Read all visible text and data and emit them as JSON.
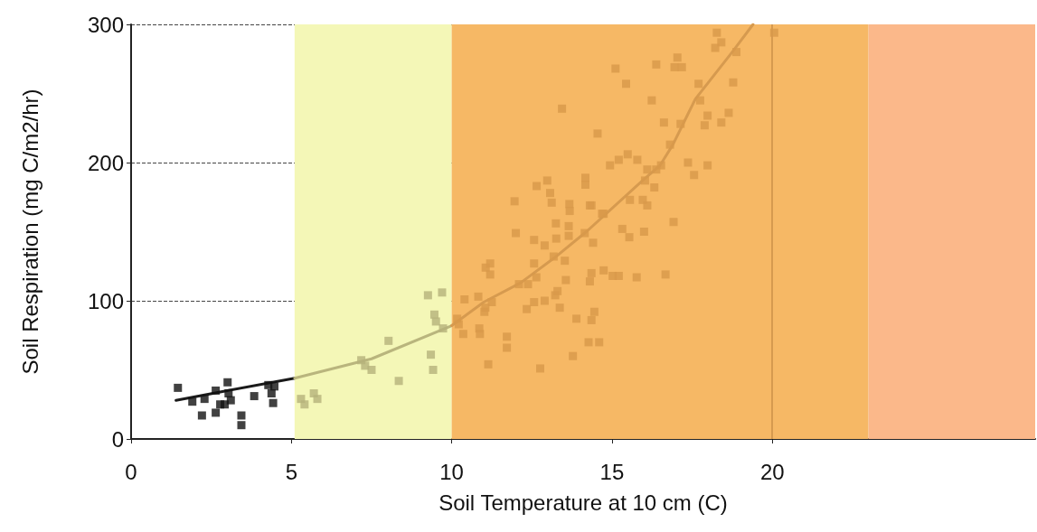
{
  "chart_data": {
    "type": "scatter",
    "xlabel": "Soil Temperature at 10 cm (C)",
    "ylabel": "Soil Respiration (mg C/m2/hr)",
    "xlim": [
      0,
      28.2
    ],
    "xticks": [
      0,
      5,
      10,
      15,
      20
    ],
    "ylim": [
      0,
      300
    ],
    "yticks": [
      0,
      100,
      200,
      300
    ],
    "grid": "y",
    "bands": [
      {
        "axis": "x",
        "from": 5.1,
        "to": 10,
        "color": "#f4f7b7"
      },
      {
        "axis": "x",
        "from": 10,
        "to": 23,
        "color": "#f6b865"
      },
      {
        "axis": "x",
        "from": 23,
        "to": 28.2,
        "color": "#fbb88a"
      }
    ],
    "ref_lines": [
      {
        "axis": "x",
        "value": 20,
        "color": "#d69a4f"
      }
    ],
    "series": [
      {
        "marker": "square",
        "color": "#111111",
        "x": [
          1.46,
          1.91,
          2.29,
          2.21,
          2.64,
          2.64,
          2.78,
          2.92,
          3.01,
          3.04,
          3.11,
          3.44,
          3.44,
          3.84,
          4.28,
          4.47,
          4.43,
          4.38
        ],
        "values": [
          37,
          27,
          29,
          17,
          35,
          19,
          25,
          25,
          41,
          33,
          28,
          17,
          10,
          31,
          39,
          38,
          26,
          33
        ]
      },
      {
        "marker": "square",
        "color": "#b5b27a",
        "x": [
          5.3,
          5.41,
          5.7,
          5.81,
          7.18,
          7.3,
          7.5,
          8.03,
          8.35,
          9.26,
          9.7,
          9.46,
          9.51,
          9.73,
          9.35,
          9.42
        ],
        "values": [
          29,
          25,
          33,
          29,
          57,
          53,
          50,
          71,
          42,
          104,
          106,
          90,
          85,
          80,
          61,
          50
        ]
      },
      {
        "marker": "square",
        "color": "#d8994a",
        "x": [
          12.0,
          12.57,
          12.9,
          13.25,
          13.65,
          13.65,
          13.26,
          14.15,
          14.41,
          11.06,
          11.2,
          11.2,
          12.57,
          13.18,
          13.53,
          12.64,
          12.38,
          12.1,
          13.56,
          14.31,
          14.36,
          14.74,
          15.02,
          10.4,
          10.83,
          11.25,
          11.05,
          11.02,
          12.57,
          12.34,
          12.9,
          13.3,
          13.23,
          13.37,
          13.89,
          14.45,
          14.36,
          10.17,
          10.22,
          10.36,
          10.86,
          10.88,
          11.72,
          11.72,
          11.14,
          12.76,
          13.78,
          14.27,
          14.6,
          14.55,
          15.21,
          15.49,
          15.79,
          14.94,
          16.1,
          16.53,
          16.38,
          17.37,
          17.98,
          17.56,
          16.03,
          16.32,
          15.56,
          15.96,
          16.1,
          14.36,
          14.74,
          16.92,
          15.32,
          15.54,
          16.0,
          15.21,
          15.77,
          16.67,
          18.27,
          18.41,
          18.22,
          18.88,
          20.06,
          15.11,
          15.44,
          16.38,
          17.04,
          16.95,
          17.18,
          17.7,
          18.78,
          16.24,
          17.75,
          16.62,
          17.14,
          17.98,
          18.64,
          17.89,
          18.41,
          16.81,
          13.44,
          14.17,
          14.17,
          12.98,
          12.65,
          13.07,
          13.12,
          11.96,
          13.67,
          13.68,
          14.31,
          14.69
        ],
        "values": [
          149,
          144,
          140,
          156,
          154,
          147,
          145,
          149,
          142,
          124,
          127,
          119,
          127,
          132,
          129,
          117,
          112,
          112,
          115,
          114,
          120,
          122,
          118,
          101,
          103,
          99,
          95,
          92,
          99,
          94,
          100,
          107,
          104,
          95,
          87,
          92,
          86,
          87,
          83,
          76,
          80,
          76,
          74,
          66,
          54,
          51,
          60,
          70,
          70,
          221,
          202,
          206,
          202,
          198,
          195,
          198,
          195,
          200,
          198,
          191,
          187,
          182,
          173,
          173,
          169,
          169,
          163,
          157,
          152,
          146,
          150,
          118,
          117,
          119,
          294,
          287,
          283,
          280,
          294,
          268,
          257,
          271,
          276,
          269,
          269,
          257,
          258,
          245,
          245,
          229,
          228,
          234,
          236,
          227,
          229,
          213,
          239,
          189,
          184,
          187,
          183,
          178,
          171,
          172,
          170,
          165,
          169,
          163
        ]
      },
      {
        "type": "line",
        "marker": "none",
        "color": "#1a1a1a",
        "x": [
          1.4,
          3.0,
          5.1
        ],
        "values": [
          28,
          35,
          44
        ]
      },
      {
        "type": "line",
        "marker": "none",
        "color": "#b9b57d",
        "x": [
          5.1,
          7.5,
          10
        ],
        "values": [
          44,
          58,
          82
        ]
      },
      {
        "type": "line",
        "marker": "none",
        "color": "#d69a4f",
        "x": [
          10,
          11.0,
          12.15,
          13.2,
          14.2,
          16.0,
          16.5,
          16.9,
          17.6,
          18.75,
          19.4
        ],
        "values": [
          82,
          99,
          113,
          131,
          150,
          188,
          198,
          213,
          246,
          280,
          300
        ]
      }
    ],
    "line_style": "solid"
  }
}
